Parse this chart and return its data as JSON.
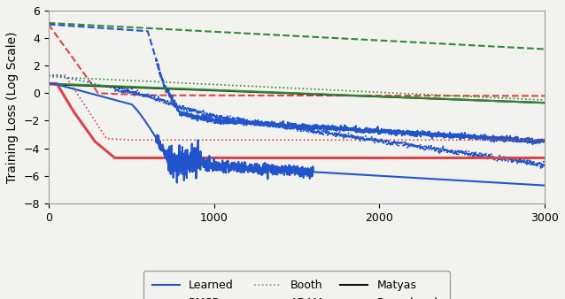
{
  "ylabel": "Training Loss (Log Scale)",
  "xlim": [
    0,
    3000
  ],
  "ylim": [
    -8,
    6
  ],
  "yticks": [
    -8,
    -6,
    -4,
    -2,
    0,
    2,
    4,
    6
  ],
  "xticks": [
    0,
    1000,
    2000,
    3000
  ],
  "figsize": [
    6.38,
    3.38
  ],
  "dpi": 100,
  "colors": {
    "blue": "#2255cc",
    "red": "#dd4444",
    "green": "#338833",
    "black": "#111111"
  },
  "bg": "#f2f2ee"
}
